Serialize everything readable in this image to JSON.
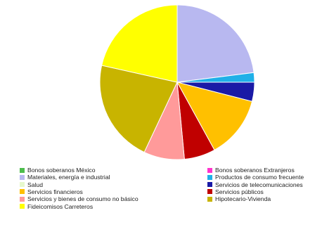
{
  "chart_data": {
    "type": "pie",
    "title": "",
    "legend_position": "bottom",
    "slices": [
      {
        "label": "Bonos soberanos México",
        "value": 0,
        "color": "#4dbd4d"
      },
      {
        "label": "Bonos soberanos Extranjeros",
        "value": 0,
        "color": "#ff33cc"
      },
      {
        "label": "Materiales, energía e industrial",
        "value": 23.0,
        "color": "#b8b8f0"
      },
      {
        "label": "Productos de consumo frecuente",
        "value": 2.0,
        "color": "#1fb0e8"
      },
      {
        "label": "Salud",
        "value": 0,
        "color": "#e6f8cc"
      },
      {
        "label": "Servicios de telecomunicaciones",
        "value": 4.0,
        "color": "#1a1aa6"
      },
      {
        "label": "Servicios financieros",
        "value": 13.0,
        "color": "#ffc000"
      },
      {
        "label": "Servicios públicos",
        "value": 6.5,
        "color": "#c00000"
      },
      {
        "label": "Servicios y bienes de consumo no básico",
        "value": 8.5,
        "color": "#ff9a9a"
      },
      {
        "label": "Hipotecario-Vivienda",
        "value": 21.5,
        "color": "#c8b400"
      },
      {
        "label": "Fideicomisos Carreteros",
        "value": 21.5,
        "color": "#ffff00"
      }
    ]
  }
}
